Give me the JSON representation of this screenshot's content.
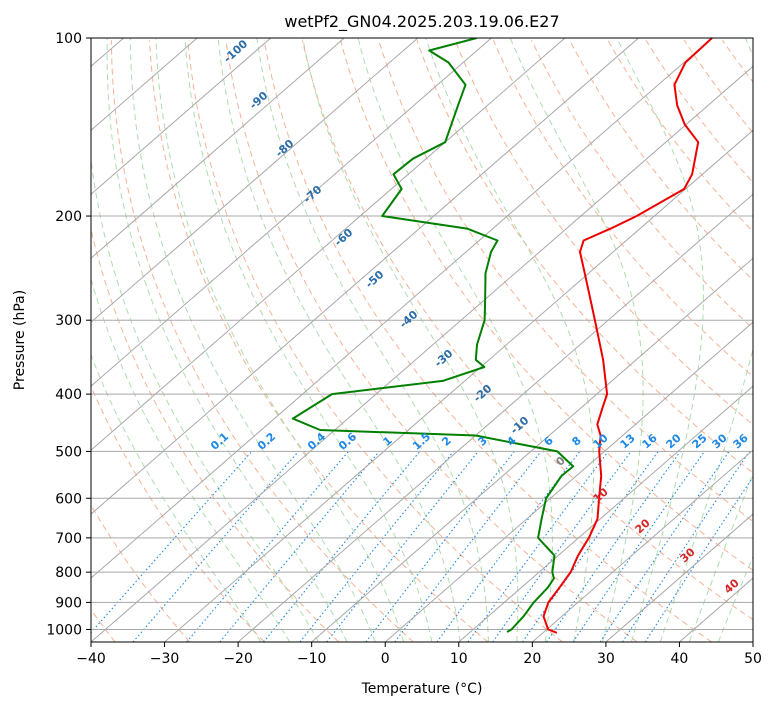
{
  "colors": {
    "temperature": "#ee0000",
    "dewpoint": "#008000",
    "isotherm": "#a8a8a8",
    "isobar": "#a8a8a8",
    "dry_adiabat": "#f4a582",
    "moist_adiabat": "#a6d8a6",
    "mixing_ratio": "#1e88e5",
    "dry_label": "#2b6da8",
    "moist_label": "#d62728",
    "mix_label": "#1e88e5",
    "background_tint": "#e8c9a8"
  },
  "chart_data": {
    "type": "line",
    "title": "wetPf2_GN04.2025.203.19.06.E27",
    "xlabel": "Temperature (°C)",
    "ylabel": "Pressure (hPa)",
    "xlim": [
      -40,
      50
    ],
    "ylim": [
      1050,
      100
    ],
    "y_scale": "log",
    "skew": true,
    "grid": true,
    "x_ticks": [
      -40,
      -30,
      -20,
      -10,
      0,
      10,
      20,
      30,
      40,
      50
    ],
    "x_tick_labels": [
      "−40",
      "−30",
      "−20",
      "−10",
      "0",
      "10",
      "20",
      "30",
      "40",
      "50"
    ],
    "y_ticks": [
      100,
      200,
      300,
      400,
      500,
      600,
      700,
      800,
      900,
      1000
    ],
    "y_tick_labels": [
      "100",
      "200",
      "300",
      "400",
      "500",
      "600",
      "700",
      "800",
      "900",
      "1000"
    ],
    "series": [
      {
        "role": "temperature",
        "points": [
          [
            1013,
            21.9
          ],
          [
            1000,
            20.2
          ],
          [
            950,
            17.5
          ],
          [
            900,
            16.0
          ],
          [
            850,
            15.2
          ],
          [
            800,
            14.3
          ],
          [
            750,
            12.7
          ],
          [
            700,
            11.4
          ],
          [
            650,
            9.6
          ],
          [
            600,
            6.6
          ],
          [
            550,
            3.4
          ],
          [
            500,
            -0.7
          ],
          [
            470,
            -3.0
          ],
          [
            450,
            -5.2
          ],
          [
            420,
            -7.2
          ],
          [
            400,
            -8.6
          ],
          [
            350,
            -14.5
          ],
          [
            300,
            -21.8
          ],
          [
            250,
            -30.5
          ],
          [
            230,
            -34.5
          ],
          [
            220,
            -35.8
          ],
          [
            210,
            -34.0
          ],
          [
            200,
            -32.4
          ],
          [
            180,
            -30.2
          ],
          [
            170,
            -31.4
          ],
          [
            150,
            -35.6
          ],
          [
            140,
            -40.2
          ],
          [
            130,
            -44.2
          ],
          [
            120,
            -47.8
          ],
          [
            110,
            -49.8
          ],
          [
            100,
            -50.0
          ]
        ]
      },
      {
        "role": "dewpoint",
        "points": [
          [
            1010,
            15.0
          ],
          [
            1000,
            15.2
          ],
          [
            950,
            14.8
          ],
          [
            900,
            14.0
          ],
          [
            850,
            13.6
          ],
          [
            820,
            13.0
          ],
          [
            800,
            11.8
          ],
          [
            750,
            9.5
          ],
          [
            700,
            4.5
          ],
          [
            650,
            2.0
          ],
          [
            600,
            -0.6
          ],
          [
            550,
            -2.0
          ],
          [
            530,
            -1.9
          ],
          [
            500,
            -6.4
          ],
          [
            470,
            -20.0
          ],
          [
            460,
            -42.0
          ],
          [
            440,
            -47.5
          ],
          [
            400,
            -46.0
          ],
          [
            380,
            -33.0
          ],
          [
            360,
            -29.5
          ],
          [
            350,
            -31.8
          ],
          [
            330,
            -34.0
          ],
          [
            300,
            -36.8
          ],
          [
            280,
            -39.5
          ],
          [
            250,
            -44.0
          ],
          [
            230,
            -46.6
          ],
          [
            220,
            -47.5
          ],
          [
            210,
            -53.5
          ],
          [
            200,
            -67.0
          ],
          [
            180,
            -68.6
          ],
          [
            170,
            -72.0
          ],
          [
            160,
            -71.8
          ],
          [
            150,
            -70.0
          ],
          [
            130,
            -74.0
          ],
          [
            120,
            -76.2
          ],
          [
            110,
            -82.0
          ],
          [
            105,
            -86.5
          ],
          [
            100,
            -82.0
          ]
        ]
      }
    ],
    "dry_adiabat_labels": [
      "-100",
      "-90",
      "-80",
      "-70",
      "-60",
      "-50",
      "-40",
      "-30",
      "-20",
      "-10",
      "0"
    ],
    "moist_adiabat_labels": [
      "10",
      "20",
      "30",
      "40"
    ],
    "mixing_ratio_labels": [
      "0.1",
      "0.2",
      "0.4",
      "0.6",
      "1",
      "1.5",
      "2",
      "3",
      "4",
      "6",
      "8",
      "10",
      "13",
      "16",
      "20",
      "25",
      "30",
      "36"
    ]
  }
}
